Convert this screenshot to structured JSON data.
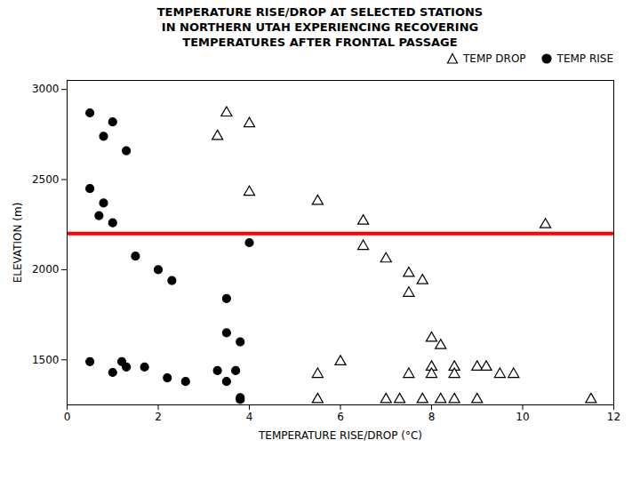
{
  "chart_data": {
    "type": "scatter",
    "title": "TEMPERATURE RISE/DROP AT SELECTED STATIONS\nIN NORTHERN UTAH EXPERIENCING RECOVERING\nTEMPERATURES AFTER FRONTAL PASSAGE",
    "xlabel": "TEMPERATURE RISE/DROP (°C)",
    "ylabel": "ELEVATION (m)",
    "xlim": [
      0,
      12
    ],
    "ylim": [
      1250,
      3050
    ],
    "xticks": [
      0,
      2,
      4,
      6,
      8,
      10,
      12
    ],
    "yticks": [
      1500,
      2000,
      2500,
      3000
    ],
    "grid": false,
    "legend": "upper right",
    "reference_line": {
      "y": 2200,
      "color": "#ff0000"
    },
    "series": [
      {
        "name": "TEMP DROP",
        "color": "#000000",
        "marker": "open_triangle",
        "x": [
          3.5,
          4.0,
          3.3,
          4.0,
          5.5,
          6.5,
          10.5,
          6.5,
          7.0,
          7.5,
          7.8,
          7.5,
          8.0,
          8.2,
          6.0,
          8.0,
          8.5,
          9.0,
          9.2,
          5.5,
          7.5,
          8.0,
          8.5,
          9.5,
          9.8,
          5.5,
          7.0,
          7.3,
          7.8,
          8.2,
          8.5,
          9.0,
          11.5
        ],
        "values": [
          2870,
          2810,
          2740,
          2430,
          2380,
          2270,
          2250,
          2130,
          2060,
          1980,
          1940,
          1870,
          1620,
          1580,
          1490,
          1460,
          1460,
          1460,
          1460,
          1420,
          1420,
          1420,
          1420,
          1420,
          1420,
          1280,
          1280,
          1280,
          1280,
          1280,
          1280,
          1280,
          1280
        ]
      },
      {
        "name": "TEMP RISE",
        "color": "#000000",
        "marker": "circle",
        "x": [
          0.5,
          1.0,
          0.8,
          1.3,
          0.5,
          0.8,
          0.7,
          1.0,
          4.0,
          1.5,
          2.0,
          2.3,
          3.5,
          3.5,
          3.8,
          0.5,
          1.2,
          1.3,
          1.7,
          1.0,
          3.3,
          3.7,
          2.2,
          2.6,
          3.5,
          3.8,
          3.8
        ],
        "values": [
          2870,
          2820,
          2740,
          2660,
          2450,
          2370,
          2300,
          2260,
          2150,
          2075,
          2000,
          1940,
          1840,
          1650,
          1600,
          1490,
          1490,
          1460,
          1460,
          1430,
          1440,
          1440,
          1400,
          1380,
          1380,
          1280,
          1290
        ]
      }
    ]
  }
}
